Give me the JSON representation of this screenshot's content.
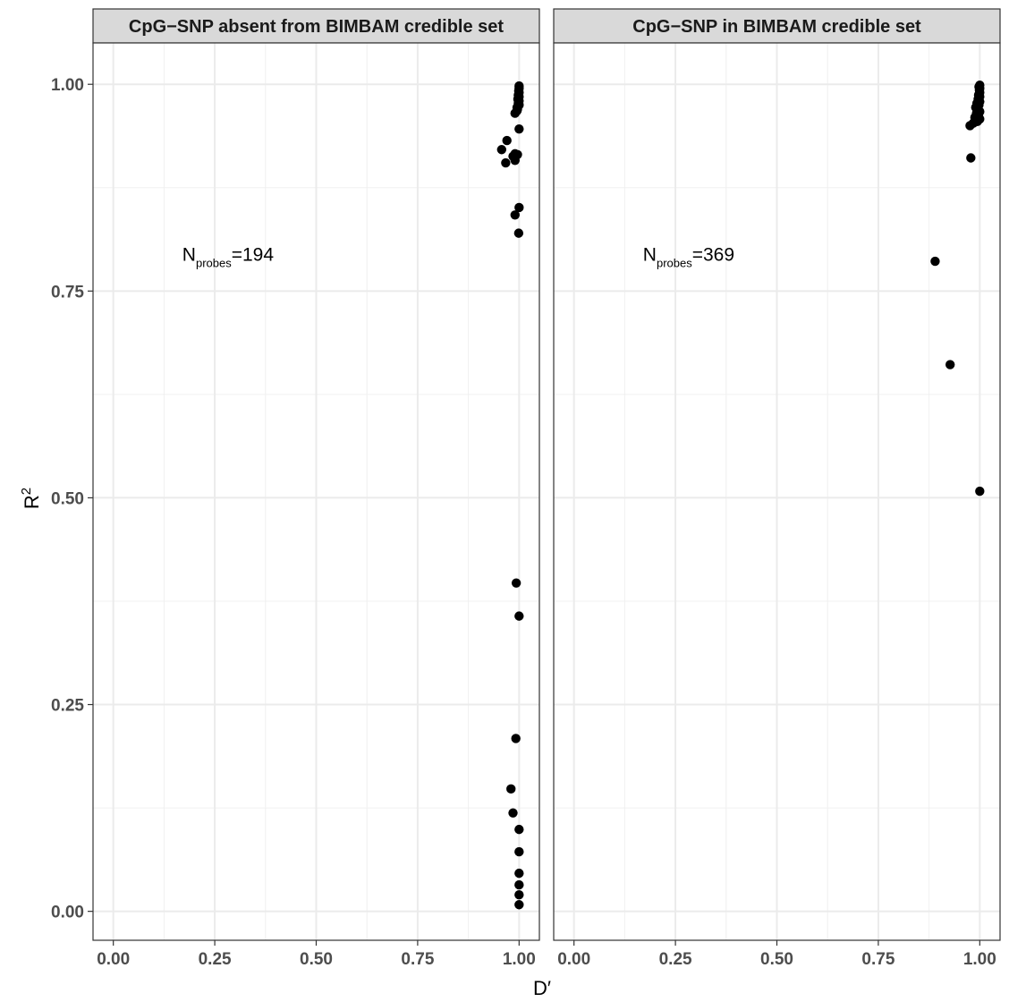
{
  "chart_data": {
    "type": "scatter",
    "xlabel": "D′",
    "ylabel": "R",
    "ylabel_superscript": "2",
    "xlim": [
      -0.05,
      1.05
    ],
    "ylim": [
      -0.035,
      1.05
    ],
    "x_ticks": [
      0.0,
      0.25,
      0.5,
      0.75,
      1.0
    ],
    "x_tick_labels": [
      "0.00",
      "0.25",
      "0.50",
      "0.75",
      "1.00"
    ],
    "y_ticks": [
      0.0,
      0.25,
      0.5,
      0.75,
      1.0
    ],
    "y_tick_labels": [
      "0.00",
      "0.25",
      "0.50",
      "0.75",
      "1.00"
    ],
    "grid": true,
    "point_color": "#000000",
    "panels": [
      {
        "title": "CpG−SNP absent from BIMBAM credible set",
        "annotation": {
          "main": "N",
          "sub": "probes",
          "value": "=194",
          "x": 0.17,
          "y": 0.795
        },
        "points": [
          {
            "x": 1.0,
            "y": 0.998
          },
          {
            "x": 1.0,
            "y": 0.995
          },
          {
            "x": 0.999,
            "y": 0.992
          },
          {
            "x": 1.0,
            "y": 0.99
          },
          {
            "x": 0.998,
            "y": 0.987
          },
          {
            "x": 1.0,
            "y": 0.985
          },
          {
            "x": 0.997,
            "y": 0.982
          },
          {
            "x": 1.0,
            "y": 0.98
          },
          {
            "x": 0.998,
            "y": 0.977
          },
          {
            "x": 1.0,
            "y": 0.975
          },
          {
            "x": 0.995,
            "y": 0.972
          },
          {
            "x": 0.996,
            "y": 0.97
          },
          {
            "x": 0.99,
            "y": 0.965
          },
          {
            "x": 0.995,
            "y": 0.968
          },
          {
            "x": 1.0,
            "y": 0.946
          },
          {
            "x": 0.97,
            "y": 0.932
          },
          {
            "x": 0.957,
            "y": 0.921
          },
          {
            "x": 0.99,
            "y": 0.916
          },
          {
            "x": 0.996,
            "y": 0.915
          },
          {
            "x": 0.985,
            "y": 0.913
          },
          {
            "x": 0.967,
            "y": 0.905
          },
          {
            "x": 0.99,
            "y": 0.908
          },
          {
            "x": 1.0,
            "y": 0.851
          },
          {
            "x": 0.99,
            "y": 0.842
          },
          {
            "x": 0.999,
            "y": 0.82
          },
          {
            "x": 0.993,
            "y": 0.397
          },
          {
            "x": 1.0,
            "y": 0.357
          },
          {
            "x": 0.992,
            "y": 0.209
          },
          {
            "x": 0.98,
            "y": 0.148
          },
          {
            "x": 0.985,
            "y": 0.119
          },
          {
            "x": 1.0,
            "y": 0.099
          },
          {
            "x": 1.0,
            "y": 0.072
          },
          {
            "x": 1.0,
            "y": 0.046
          },
          {
            "x": 1.0,
            "y": 0.032
          },
          {
            "x": 1.0,
            "y": 0.02
          },
          {
            "x": 1.0,
            "y": 0.008
          }
        ]
      },
      {
        "title": "CpG−SNP in BIMBAM credible set",
        "annotation": {
          "main": "N",
          "sub": "probes",
          "value": "=369",
          "x": 0.17,
          "y": 0.795
        },
        "points": [
          {
            "x": 1.0,
            "y": 0.999
          },
          {
            "x": 0.998,
            "y": 0.997
          },
          {
            "x": 1.0,
            "y": 0.995
          },
          {
            "x": 0.999,
            "y": 0.993
          },
          {
            "x": 1.0,
            "y": 0.99
          },
          {
            "x": 0.997,
            "y": 0.987
          },
          {
            "x": 1.0,
            "y": 0.985
          },
          {
            "x": 0.996,
            "y": 0.982
          },
          {
            "x": 1.0,
            "y": 0.979
          },
          {
            "x": 0.993,
            "y": 0.977
          },
          {
            "x": 0.998,
            "y": 0.975
          },
          {
            "x": 0.99,
            "y": 0.972
          },
          {
            "x": 0.995,
            "y": 0.97
          },
          {
            "x": 1.0,
            "y": 0.967
          },
          {
            "x": 0.992,
            "y": 0.965
          },
          {
            "x": 0.997,
            "y": 0.962
          },
          {
            "x": 0.988,
            "y": 0.96
          },
          {
            "x": 1.0,
            "y": 0.958
          },
          {
            "x": 0.994,
            "y": 0.955
          },
          {
            "x": 0.984,
            "y": 0.953
          },
          {
            "x": 0.976,
            "y": 0.95
          },
          {
            "x": 0.978,
            "y": 0.911
          },
          {
            "x": 0.89,
            "y": 0.786
          },
          {
            "x": 0.927,
            "y": 0.661
          },
          {
            "x": 1.0,
            "y": 0.508
          }
        ]
      }
    ]
  }
}
